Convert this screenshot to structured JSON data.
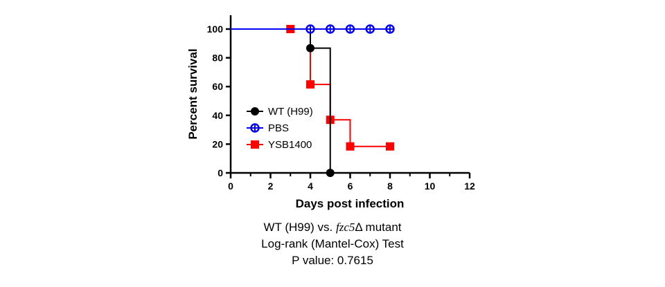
{
  "chart_data": {
    "type": "line",
    "subtype": "kaplan-meier survival",
    "xlabel": "Days post infection",
    "ylabel": "Percent survival",
    "xlim": [
      0,
      12
    ],
    "ylim": [
      0,
      100
    ],
    "x_ticks": [
      0,
      2,
      4,
      6,
      8,
      10,
      12
    ],
    "y_ticks": [
      0,
      20,
      40,
      60,
      80,
      100
    ],
    "grid": false,
    "legend_position": "left-center",
    "series": [
      {
        "name": "WT (H99)",
        "color": "#000000",
        "marker": "filled-circle",
        "steps": [
          [
            0,
            100
          ],
          [
            4,
            100
          ],
          [
            4,
            86.7
          ],
          [
            5,
            86.7
          ],
          [
            5,
            0
          ]
        ],
        "markers": [
          [
            4,
            86.7
          ],
          [
            5,
            0
          ]
        ]
      },
      {
        "name": "PBS",
        "color": "#0000ff",
        "marker": "open-circle-cross",
        "steps": [
          [
            0,
            100
          ],
          [
            8,
            100
          ]
        ],
        "markers": [
          [
            4,
            100
          ],
          [
            5,
            100
          ],
          [
            6,
            100
          ],
          [
            7,
            100
          ],
          [
            8,
            100
          ]
        ]
      },
      {
        "name": "YSB1400",
        "color": "#ff0000",
        "marker": "filled-square",
        "steps": [
          [
            3,
            100
          ],
          [
            4,
            100
          ],
          [
            4,
            61.5
          ],
          [
            5,
            61.5
          ],
          [
            5,
            36.9
          ],
          [
            6,
            36.9
          ],
          [
            6,
            18.4
          ],
          [
            8,
            18.4
          ]
        ],
        "markers": [
          [
            3,
            100
          ],
          [
            4,
            61.5
          ],
          [
            5,
            36.9
          ],
          [
            6,
            18.4
          ],
          [
            8,
            18.4
          ]
        ]
      }
    ]
  },
  "caption": {
    "line1_prefix": "WT (H99) vs. ",
    "line1_italic": "fzc5",
    "line1_suffix": "Δ mutant",
    "line2": "Log-rank (Mantel-Cox) Test",
    "line3": "P value: 0.7615"
  }
}
